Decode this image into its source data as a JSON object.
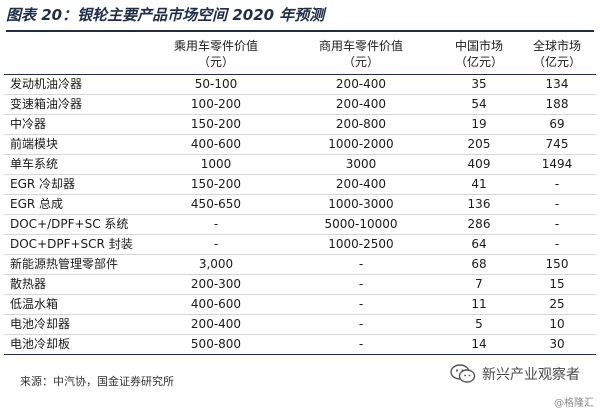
{
  "title": "图表 20：银轮主要产品市场空间 2020 年预测",
  "headers": [
    {
      "line1": "",
      "line2": ""
    },
    {
      "line1": "乘用车零件价值",
      "line2": "（元）"
    },
    {
      "line1": "商用车零件价值",
      "line2": "（元）"
    },
    {
      "line1": "中国市场",
      "line2": "（亿元）"
    },
    {
      "line1": "全球市场",
      "line2": "（亿元）"
    }
  ],
  "rows": [
    [
      "发动机油冷器",
      "50-100",
      "200-400",
      "35",
      "134"
    ],
    [
      "变速箱油冷器",
      "100-200",
      "200-400",
      "54",
      "188"
    ],
    [
      "中冷器",
      "150-200",
      "200-800",
      "19",
      "69"
    ],
    [
      "前端模块",
      "400-600",
      "1000-2000",
      "205",
      "745"
    ],
    [
      "单车系统",
      "1000",
      "3000",
      "409",
      "1494"
    ],
    [
      "EGR 冷却器",
      "150-200",
      "200-400",
      "41",
      "-"
    ],
    [
      "EGR 总成",
      "450-650",
      "1000-3000",
      "136",
      "-"
    ],
    [
      "DOC+/DPF+SC 系统",
      "-",
      "5000-10000",
      "286",
      "-"
    ],
    [
      "DOC+DPF+SCR 封装",
      "-",
      "1000-2500",
      "64",
      "-"
    ],
    [
      "新能源热管理零部件",
      "3,000",
      "-",
      "68",
      "150"
    ],
    [
      "散热器",
      "200-300",
      "-",
      "7",
      "15"
    ],
    [
      "低温水箱",
      "400-600",
      "-",
      "11",
      "25"
    ],
    [
      "电池冷却器",
      "200-400",
      "-",
      "5",
      "10"
    ],
    [
      "电池冷却板",
      "500-800",
      "-",
      "14",
      "30"
    ]
  ],
  "source": "来源：中汽协，国金证券研究所",
  "watermark": "新兴产业观察者",
  "brand": "@格隆汇",
  "colors": {
    "title": "#1f2f4a",
    "rule": "#1f2f4a"
  },
  "icons": {
    "watermark": "wechat-icon"
  }
}
